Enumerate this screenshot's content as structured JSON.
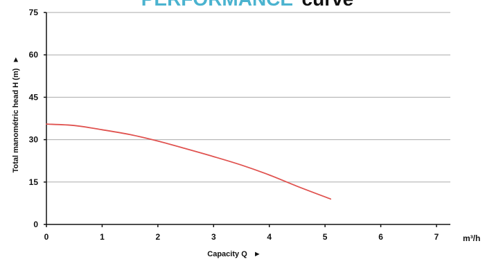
{
  "chart_data": {
    "type": "line",
    "title_accent": "PERFORMANCE",
    "title_rest": "curve",
    "xlabel": "Capacity Q",
    "ylabel": "Total manométric head H (m)",
    "x_unit": "m³/h",
    "xlim": [
      0,
      7
    ],
    "ylim": [
      0,
      75
    ],
    "x_ticks": [
      "0",
      "1",
      "2",
      "3",
      "4",
      "5",
      "6",
      "7"
    ],
    "y_ticks": [
      "0",
      "15",
      "30",
      "45",
      "60",
      "75"
    ],
    "grid": true,
    "series": [
      {
        "x": [
          0,
          0.5,
          1,
          1.5,
          2,
          2.5,
          3,
          3.5,
          4,
          4.5,
          5.1
        ],
        "y": [
          35.5,
          35,
          33.5,
          31.8,
          29.5,
          26.8,
          24,
          21,
          17.5,
          13.5,
          9
        ]
      }
    ]
  },
  "colors": {
    "title_accent": "#4bb3cf",
    "curve": "#e0524f",
    "grid": "#aaaaaa",
    "axis": "#111111"
  }
}
